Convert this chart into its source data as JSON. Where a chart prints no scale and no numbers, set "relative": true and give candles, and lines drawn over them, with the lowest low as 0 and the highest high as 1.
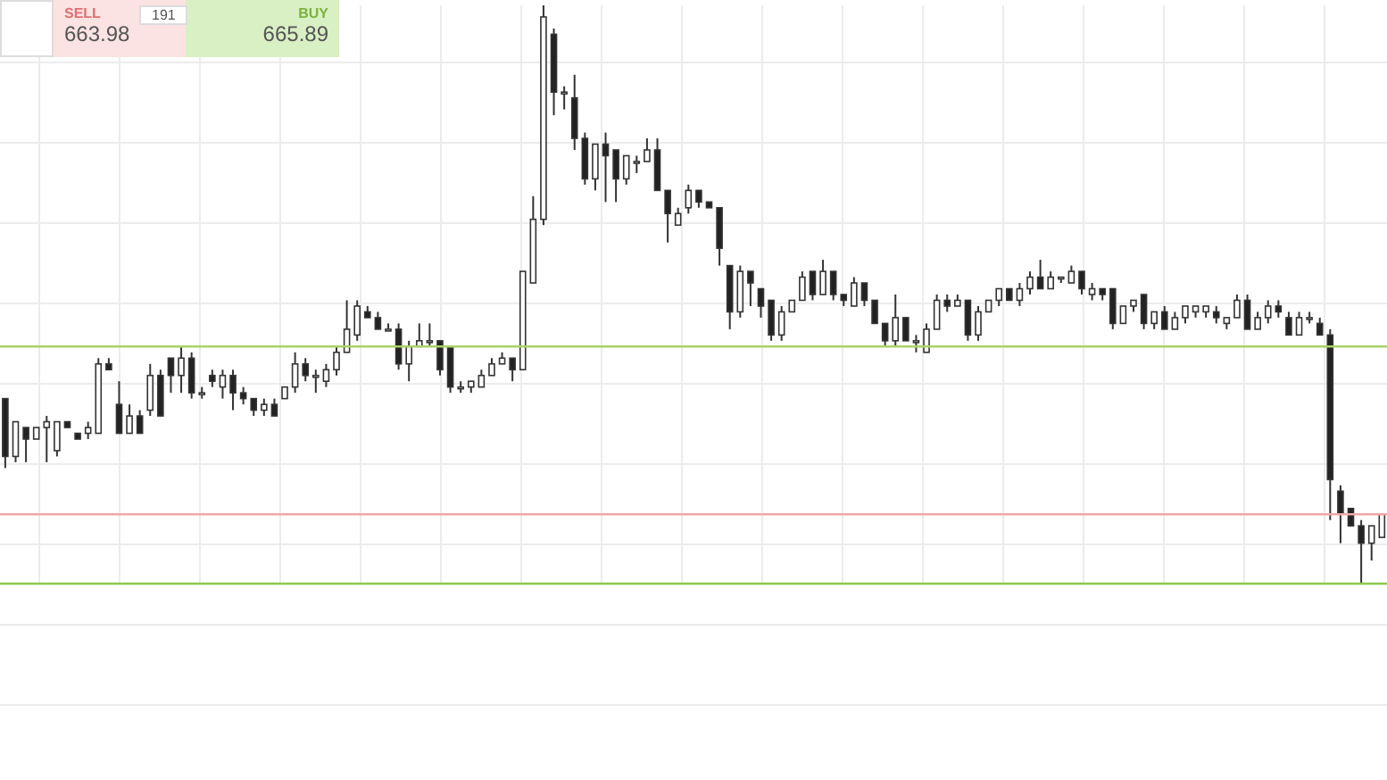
{
  "chart_data": {
    "type": "candlestick",
    "relative": true,
    "grid": true,
    "categories": [
      null,
      null,
      null,
      null,
      null,
      null,
      null,
      null,
      null,
      null,
      null,
      null,
      null,
      null,
      null,
      null,
      null,
      null,
      null,
      null,
      null,
      null,
      null,
      null,
      null,
      null,
      null,
      null,
      null,
      null,
      null,
      null,
      null,
      null,
      null,
      null,
      null,
      null,
      null,
      null,
      null,
      null,
      null,
      null,
      null,
      null,
      null,
      null,
      null,
      null,
      null,
      null,
      null,
      null,
      null,
      null,
      null,
      null,
      null,
      null,
      null,
      null,
      null,
      null,
      null,
      null,
      null,
      null,
      null,
      null,
      null,
      null,
      null,
      null,
      null,
      null,
      null,
      null,
      null,
      null,
      null,
      null,
      null,
      null,
      null,
      null,
      null,
      null,
      null,
      null,
      null,
      null,
      null,
      null,
      null,
      null,
      null,
      null,
      null,
      null,
      null,
      null,
      null,
      null,
      null,
      null,
      null,
      null,
      null,
      null,
      null,
      null,
      null,
      null,
      null,
      null,
      null,
      null,
      null,
      null,
      null,
      null,
      null,
      null,
      null,
      null,
      null,
      null,
      null,
      null,
      null,
      null,
      null,
      null
    ],
    "ohlc": [
      [
        0.32,
        0.32,
        0.2,
        0.22
      ],
      [
        0.22,
        0.28,
        0.21,
        0.28
      ],
      [
        0.27,
        0.27,
        0.21,
        0.25
      ],
      [
        0.25,
        0.27,
        0.25,
        0.27
      ],
      [
        0.27,
        0.29,
        0.21,
        0.28
      ],
      [
        0.23,
        0.28,
        0.22,
        0.28
      ],
      [
        0.28,
        0.28,
        0.27,
        0.27
      ],
      [
        0.26,
        0.26,
        0.25,
        0.25
      ],
      [
        0.26,
        0.28,
        0.25,
        0.27
      ],
      [
        0.26,
        0.39,
        0.26,
        0.38
      ],
      [
        0.38,
        0.39,
        0.37,
        0.37
      ],
      [
        0.31,
        0.35,
        0.26,
        0.26
      ],
      [
        0.26,
        0.31,
        0.26,
        0.29
      ],
      [
        0.29,
        0.3,
        0.26,
        0.26
      ],
      [
        0.3,
        0.38,
        0.29,
        0.36
      ],
      [
        0.36,
        0.37,
        0.29,
        0.29
      ],
      [
        0.39,
        0.39,
        0.33,
        0.36
      ],
      [
        0.36,
        0.41,
        0.33,
        0.39
      ],
      [
        0.39,
        0.4,
        0.32,
        0.33
      ],
      [
        0.33,
        0.34,
        0.32,
        0.33
      ],
      [
        0.36,
        0.37,
        0.34,
        0.35
      ],
      [
        0.34,
        0.37,
        0.32,
        0.36
      ],
      [
        0.36,
        0.37,
        0.3,
        0.33
      ],
      [
        0.33,
        0.34,
        0.31,
        0.32
      ],
      [
        0.32,
        0.32,
        0.29,
        0.3
      ],
      [
        0.3,
        0.32,
        0.29,
        0.31
      ],
      [
        0.31,
        0.32,
        0.29,
        0.29
      ],
      [
        0.32,
        0.34,
        0.32,
        0.34
      ],
      [
        0.34,
        0.4,
        0.33,
        0.38
      ],
      [
        0.38,
        0.39,
        0.35,
        0.36
      ],
      [
        0.36,
        0.37,
        0.33,
        0.36
      ],
      [
        0.35,
        0.38,
        0.34,
        0.37
      ],
      [
        0.37,
        0.41,
        0.36,
        0.4
      ],
      [
        0.4,
        0.49,
        0.4,
        0.44
      ],
      [
        0.43,
        0.49,
        0.42,
        0.48
      ],
      [
        0.47,
        0.48,
        0.46,
        0.46
      ],
      [
        0.46,
        0.47,
        0.44,
        0.44
      ],
      [
        0.44,
        0.45,
        0.44,
        0.44
      ],
      [
        0.44,
        0.45,
        0.37,
        0.38
      ],
      [
        0.38,
        0.42,
        0.35,
        0.41
      ],
      [
        0.41,
        0.45,
        0.41,
        0.42
      ],
      [
        0.42,
        0.45,
        0.41,
        0.42
      ],
      [
        0.42,
        0.42,
        0.36,
        0.37
      ],
      [
        0.41,
        0.41,
        0.33,
        0.34
      ],
      [
        0.34,
        0.35,
        0.33,
        0.34
      ],
      [
        0.34,
        0.35,
        0.33,
        0.35
      ],
      [
        0.34,
        0.37,
        0.34,
        0.36
      ],
      [
        0.36,
        0.39,
        0.36,
        0.38
      ],
      [
        0.38,
        0.4,
        0.38,
        0.39
      ],
      [
        0.39,
        0.39,
        0.35,
        0.37
      ],
      [
        0.37,
        0.54,
        0.37,
        0.54
      ],
      [
        0.52,
        0.67,
        0.52,
        0.63
      ],
      [
        0.63,
        1,
        0.62,
        0.98
      ],
      [
        0.95,
        0.96,
        0.81,
        0.85
      ],
      [
        0.85,
        0.86,
        0.82,
        0.85
      ],
      [
        0.84,
        0.88,
        0.75,
        0.77
      ],
      [
        0.77,
        0.78,
        0.69,
        0.7
      ],
      [
        0.7,
        0.76,
        0.68,
        0.76
      ],
      [
        0.76,
        0.78,
        0.66,
        0.74
      ],
      [
        0.75,
        0.75,
        0.66,
        0.7
      ],
      [
        0.7,
        0.74,
        0.69,
        0.74
      ],
      [
        0.73,
        0.74,
        0.71,
        0.73
      ],
      [
        0.73,
        0.77,
        0.73,
        0.75
      ],
      [
        0.75,
        0.77,
        0.68,
        0.68
      ],
      [
        0.68,
        0.68,
        0.59,
        0.64
      ],
      [
        0.62,
        0.65,
        0.62,
        0.64
      ],
      [
        0.65,
        0.69,
        0.64,
        0.68
      ],
      [
        0.68,
        0.68,
        0.65,
        0.66
      ],
      [
        0.66,
        0.66,
        0.65,
        0.65
      ],
      [
        0.65,
        0.65,
        0.55,
        0.58
      ],
      [
        0.55,
        0.55,
        0.44,
        0.47
      ],
      [
        0.47,
        0.55,
        0.46,
        0.54
      ],
      [
        0.54,
        0.54,
        0.48,
        0.52
      ],
      [
        0.51,
        0.51,
        0.46,
        0.48
      ],
      [
        0.49,
        0.49,
        0.42,
        0.43
      ],
      [
        0.43,
        0.48,
        0.42,
        0.47
      ],
      [
        0.47,
        0.49,
        0.47,
        0.49
      ],
      [
        0.49,
        0.54,
        0.49,
        0.53
      ],
      [
        0.54,
        0.54,
        0.49,
        0.5
      ],
      [
        0.5,
        0.56,
        0.5,
        0.54
      ],
      [
        0.54,
        0.54,
        0.49,
        0.5
      ],
      [
        0.5,
        0.5,
        0.48,
        0.49
      ],
      [
        0.48,
        0.53,
        0.48,
        0.52
      ],
      [
        0.52,
        0.52,
        0.48,
        0.49
      ],
      [
        0.49,
        0.49,
        0.45,
        0.45
      ],
      [
        0.45,
        0.45,
        0.41,
        0.42
      ],
      [
        0.42,
        0.5,
        0.41,
        0.46
      ],
      [
        0.46,
        0.46,
        0.42,
        0.42
      ],
      [
        0.42,
        0.43,
        0.4,
        0.42
      ],
      [
        0.4,
        0.45,
        0.4,
        0.44
      ],
      [
        0.44,
        0.5,
        0.44,
        0.49
      ],
      [
        0.49,
        0.5,
        0.47,
        0.48
      ],
      [
        0.48,
        0.5,
        0.48,
        0.49
      ],
      [
        0.49,
        0.49,
        0.42,
        0.43
      ],
      [
        0.43,
        0.48,
        0.42,
        0.47
      ],
      [
        0.47,
        0.49,
        0.47,
        0.49
      ],
      [
        0.49,
        0.51,
        0.48,
        0.51
      ],
      [
        0.51,
        0.51,
        0.49,
        0.49
      ],
      [
        0.49,
        0.52,
        0.48,
        0.51
      ],
      [
        0.51,
        0.54,
        0.5,
        0.53
      ],
      [
        0.53,
        0.56,
        0.51,
        0.51
      ],
      [
        0.51,
        0.54,
        0.51,
        0.53
      ],
      [
        0.53,
        0.53,
        0.52,
        0.53
      ],
      [
        0.52,
        0.55,
        0.52,
        0.54
      ],
      [
        0.54,
        0.54,
        0.5,
        0.51
      ],
      [
        0.5,
        0.52,
        0.49,
        0.51
      ],
      [
        0.51,
        0.51,
        0.49,
        0.5
      ],
      [
        0.51,
        0.51,
        0.44,
        0.45
      ],
      [
        0.45,
        0.48,
        0.45,
        0.48
      ],
      [
        0.48,
        0.49,
        0.47,
        0.49
      ],
      [
        0.5,
        0.5,
        0.44,
        0.45
      ],
      [
        0.45,
        0.47,
        0.44,
        0.47
      ],
      [
        0.47,
        0.48,
        0.44,
        0.44
      ],
      [
        0.44,
        0.47,
        0.44,
        0.46
      ],
      [
        0.46,
        0.48,
        0.45,
        0.48
      ],
      [
        0.47,
        0.48,
        0.46,
        0.48
      ],
      [
        0.47,
        0.48,
        0.46,
        0.48
      ],
      [
        0.47,
        0.48,
        0.45,
        0.46
      ],
      [
        0.45,
        0.46,
        0.44,
        0.46
      ],
      [
        0.46,
        0.5,
        0.46,
        0.49
      ],
      [
        0.49,
        0.5,
        0.44,
        0.44
      ],
      [
        0.44,
        0.47,
        0.44,
        0.46
      ],
      [
        0.46,
        0.49,
        0.45,
        0.48
      ],
      [
        0.48,
        0.49,
        0.46,
        0.47
      ],
      [
        0.46,
        0.47,
        0.43,
        0.43
      ],
      [
        0.43,
        0.47,
        0.43,
        0.46
      ],
      [
        0.46,
        0.47,
        0.45,
        0.46
      ],
      [
        0.45,
        0.46,
        0.43,
        0.43
      ],
      [
        0.43,
        0.44,
        0.11,
        0.18
      ],
      [
        0.16,
        0.17,
        0.07,
        0.12
      ],
      [
        0.13,
        0.13,
        0.1,
        0.1
      ],
      [
        0.1,
        0.11,
        0,
        0.07
      ],
      [
        0.07,
        0.1,
        0.04,
        0.1
      ],
      [
        0.08,
        0.12,
        0.08,
        0.12
      ]
    ],
    "ref_lines": [
      {
        "axis": "y",
        "value": 0.41,
        "color": "#a8d36a"
      },
      {
        "axis": "y",
        "value": 0.12,
        "color": "#f0a8a8"
      },
      {
        "axis": "y",
        "value": 0,
        "color": "#8cc84b"
      }
    ],
    "annotations": [
      "SELL",
      "663.98",
      "191",
      "BUY",
      "665.89"
    ]
  }
}
